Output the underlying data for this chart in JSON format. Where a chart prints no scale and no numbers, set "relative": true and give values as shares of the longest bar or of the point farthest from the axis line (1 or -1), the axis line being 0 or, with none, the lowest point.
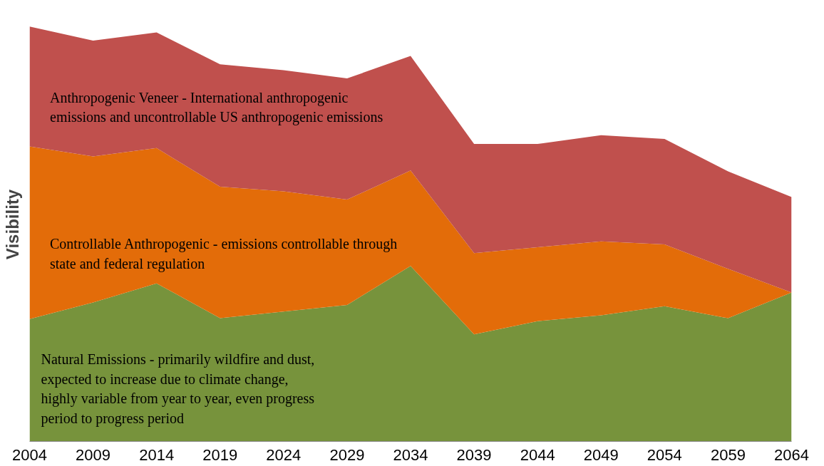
{
  "chart_data": {
    "type": "area",
    "stacked": true,
    "relative": true,
    "ylabel": "Visibility",
    "x": [
      2004,
      2009,
      2014,
      2019,
      2024,
      2029,
      2034,
      2039,
      2044,
      2049,
      2054,
      2059,
      2064
    ],
    "xlim": [
      2004,
      2064
    ],
    "xticks": [
      2004,
      2009,
      2014,
      2019,
      2024,
      2029,
      2034,
      2039,
      2044,
      2049,
      2054,
      2059,
      2064
    ],
    "legend": false,
    "grid": false,
    "series": [
      {
        "name": "Natural Emissions - primarily wildfire and dust, expected to increase due to climate change, highly variable from year to year, even progress period to progress period",
        "color": "#77933c",
        "values": [
          0.295,
          0.335,
          0.381,
          0.297,
          0.313,
          0.329,
          0.423,
          0.258,
          0.29,
          0.304,
          0.326,
          0.297,
          0.359
        ]
      },
      {
        "name": "Controllable Anthropogenic - emissions controllable through state and federal regulation",
        "color": "#e36c09",
        "values": [
          0.416,
          0.352,
          0.326,
          0.317,
          0.29,
          0.254,
          0.23,
          0.196,
          0.178,
          0.178,
          0.149,
          0.119,
          0.0
        ]
      },
      {
        "name": "Anthropogenic Veneer - International anthropogenic emissions and uncontrollable US anthropogenic emissions",
        "color": "#c0504d",
        "values": [
          0.289,
          0.279,
          0.279,
          0.295,
          0.292,
          0.292,
          0.276,
          0.263,
          0.249,
          0.256,
          0.254,
          0.235,
          0.23
        ]
      }
    ]
  }
}
